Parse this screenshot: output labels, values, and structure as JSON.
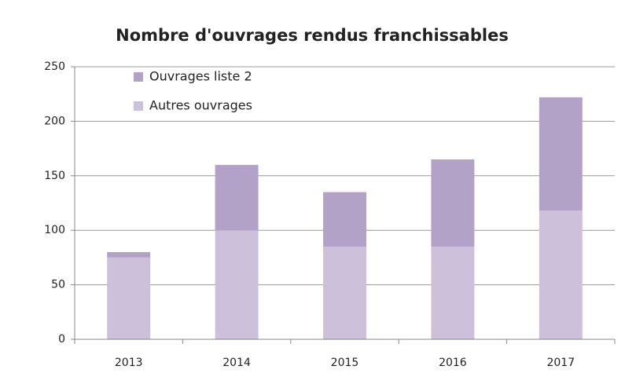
{
  "chart_data": {
    "type": "stacked_bar",
    "title": "Nombre d'ouvrages rendus franchissables",
    "categories": [
      "2013",
      "2014",
      "2015",
      "2016",
      "2017"
    ],
    "series": [
      {
        "name": "Autres ouvrages",
        "color": "#ccc0da",
        "values": [
          75,
          100,
          85,
          85,
          118
        ]
      },
      {
        "name": "Ouvrages liste 2",
        "color": "#b3a2c7",
        "values": [
          5,
          60,
          50,
          80,
          104
        ]
      }
    ],
    "ylim": [
      0,
      250
    ],
    "yticks": [
      0,
      50,
      100,
      150,
      200,
      250
    ],
    "grid": true,
    "legend": "top-left"
  }
}
